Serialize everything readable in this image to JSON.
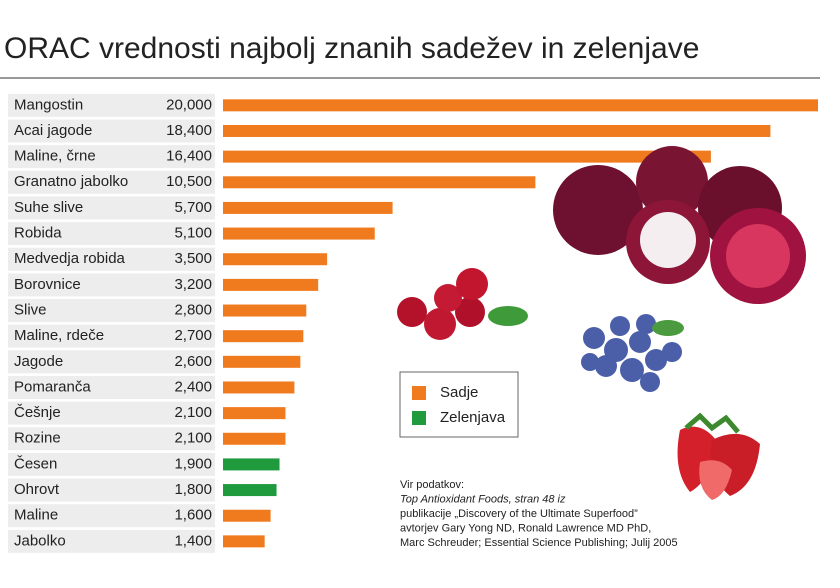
{
  "chart_data": {
    "type": "bar",
    "orientation": "horizontal",
    "title": "ORAC vrednosti najbolj znanih sadežev in zelenjave",
    "categories": [
      "Mangostin",
      "Acai jagode",
      "Maline, črne",
      "Granatno jabolko",
      "Suhe slive",
      "Robida",
      "Medvedja robida",
      "Borovnice",
      "Slive",
      "Maline, rdeče",
      "Jagode",
      "Pomaranča",
      "Češnje",
      "Rozine",
      "Česen",
      "Ohrovt",
      "Maline",
      "Jabolko"
    ],
    "series": [
      {
        "name": "Sadje",
        "color": "#f07a1e",
        "values": [
          20000,
          18400,
          16400,
          10500,
          5700,
          5100,
          3500,
          3200,
          2800,
          2700,
          2600,
          2400,
          2100,
          2100,
          null,
          null,
          1600,
          1400
        ],
        "value_labels": [
          "20,000",
          "18,400",
          "16,400",
          "10,500",
          "5,700",
          "5,100",
          "3,500",
          "3,200",
          "2,800",
          "2,700",
          "2,600",
          "2,400",
          "2,100",
          "2,100",
          null,
          null,
          "1,600",
          "1,400"
        ]
      },
      {
        "name": "Zelenjava",
        "color": "#1f9a3c",
        "values": [
          null,
          null,
          null,
          null,
          null,
          null,
          null,
          null,
          null,
          null,
          null,
          null,
          null,
          null,
          1900,
          1800,
          null,
          null
        ],
        "value_labels": [
          null,
          null,
          null,
          null,
          null,
          null,
          null,
          null,
          null,
          null,
          null,
          null,
          null,
          null,
          "1,900",
          "1,800",
          null,
          null
        ]
      }
    ],
    "xlim": [
      0,
      20000
    ],
    "source": [
      "Vir podatkov:",
      "Top Antioxidant Foods, stran 48 iz",
      "publikacije „Discovery of the Ultimate Superfood”",
      "avtorjev Gary Yong ND, Ronald Lawrence MD PhD,",
      "Marc Schreuder; Essential Science Publishing; Julij 2005"
    ]
  }
}
